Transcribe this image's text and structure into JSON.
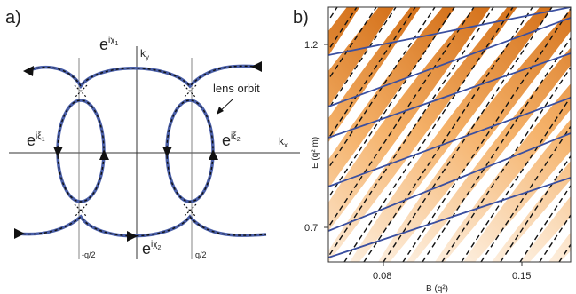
{
  "panel_a": {
    "label": "a)",
    "kx": "k",
    "kx_sub": "x",
    "ky": "k",
    "ky_sub": "y",
    "lens_orbit": "lens orbit",
    "tick_left": "-q/2",
    "tick_right": "q/2",
    "phase_base": "e",
    "chi1": "iχ",
    "chi1_sub": "1",
    "chi2": "iχ",
    "chi2_sub": "2",
    "xi1": "iξ",
    "xi1_sub": "1",
    "xi2": "iξ",
    "xi2_sub": "2",
    "colors": {
      "orbit": "#4a5fa8",
      "dash": "#111111",
      "axis": "#333333"
    }
  },
  "panel_b": {
    "label": "b)",
    "ylabel": "E (q² m)",
    "xlabel": "B (q²)",
    "yticks": [
      "1.2",
      "0.7"
    ],
    "xticks": [
      "0.08",
      "0.15"
    ],
    "colors": {
      "band_light": "#fde3c2",
      "band_dark": "#d97a1f",
      "blue": "#3a4fa0",
      "dash": "#111111"
    }
  },
  "chart_data": {
    "type": "line",
    "x_ticks": [
      0.08,
      0.15
    ],
    "y_ticks": [
      0.7,
      1.2
    ]
  }
}
